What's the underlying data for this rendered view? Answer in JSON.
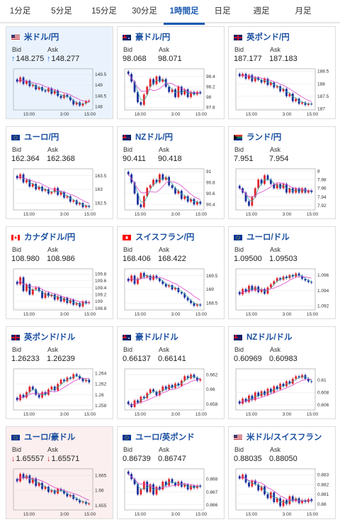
{
  "tabs": [
    {
      "label": "1分足",
      "active": false
    },
    {
      "label": "5分足",
      "active": false
    },
    {
      "label": "15分足",
      "active": false
    },
    {
      "label": "30分足",
      "active": false
    },
    {
      "label": "1時間足",
      "active": true
    },
    {
      "label": "日足",
      "active": false
    },
    {
      "label": "週足",
      "active": false
    },
    {
      "label": "月足",
      "active": false
    }
  ],
  "labels": {
    "bid": "Bid",
    "ask": "Ask"
  },
  "colors": {
    "accent": "#1a5ab0",
    "bull": "#e0242b",
    "bear": "#1a2f9c",
    "ma_pink": "#d946c8",
    "ma_teal": "#3aa8a0",
    "up_arrow": "#1a6fd0",
    "down_arrow": "#d0232a"
  },
  "pairs": [
    {
      "name": "米ドル/円",
      "flag": "flag-us-jp",
      "highlight": "blue",
      "bid": "148.275",
      "ask": "148.277",
      "direction": "up"
    },
    {
      "name": "豪ドル/円",
      "flag": "flag-au-jp",
      "highlight": "",
      "bid": "98.068",
      "ask": "98.071",
      "direction": ""
    },
    {
      "name": "英ポンド/円",
      "flag": "flag-gb-jp",
      "highlight": "",
      "bid": "187.177",
      "ask": "187.183",
      "direction": ""
    },
    {
      "name": "ユーロ/円",
      "flag": "flag-eu-jp",
      "highlight": "",
      "bid": "162.364",
      "ask": "162.368",
      "direction": ""
    },
    {
      "name": "NZドル/円",
      "flag": "flag-nz-jp",
      "highlight": "",
      "bid": "90.411",
      "ask": "90.418",
      "direction": ""
    },
    {
      "name": "ランド/円",
      "flag": "flag-za-jp",
      "highlight": "",
      "bid": "7.951",
      "ask": "7.954",
      "direction": ""
    },
    {
      "name": "カナダドル/円",
      "flag": "flag-ca-jp",
      "highlight": "",
      "bid": "108.980",
      "ask": "108.986",
      "direction": ""
    },
    {
      "name": "スイスフラン/円",
      "flag": "flag-ch-jp",
      "highlight": "",
      "bid": "168.406",
      "ask": "168.422",
      "direction": ""
    },
    {
      "name": "ユーロ/ドル",
      "flag": "flag-eu-us",
      "highlight": "",
      "bid": "1.09500",
      "ask": "1.09503",
      "direction": ""
    },
    {
      "name": "英ポンド/ドル",
      "flag": "flag-gb-us",
      "highlight": "",
      "bid": "1.26233",
      "ask": "1.26239",
      "direction": ""
    },
    {
      "name": "豪ドル/ドル",
      "flag": "flag-au-us",
      "highlight": "",
      "bid": "0.66137",
      "ask": "0.66141",
      "direction": ""
    },
    {
      "name": "NZドル/ドル",
      "flag": "flag-nz-us",
      "highlight": "",
      "bid": "0.60969",
      "ask": "0.60983",
      "direction": ""
    },
    {
      "name": "ユーロ/豪ドル",
      "flag": "flag-eu-au",
      "highlight": "red",
      "bid": "1.65557",
      "ask": "1.65571",
      "direction": "down"
    },
    {
      "name": "ユーロ/英ポンド",
      "flag": "flag-eu-gb",
      "highlight": "",
      "bid": "0.86739",
      "ask": "0.86747",
      "direction": ""
    },
    {
      "name": "米ドル/スイスフラン",
      "flag": "flag-us-ch",
      "highlight": "",
      "bid": "0.88035",
      "ask": "0.88050",
      "direction": ""
    }
  ],
  "chart_data": [
    {
      "type": "candlestick",
      "pair": "米ドル/円",
      "x_ticks": [
        "15:00",
        "3:00",
        "15:00"
      ],
      "y_ticks": [
        "149.5",
        "149",
        "148.5",
        "148"
      ],
      "ylim": [
        147.85,
        149.75
      ],
      "close": [
        149.15,
        149.35,
        149.05,
        149.2,
        148.95,
        149.0,
        148.8,
        148.9,
        148.75,
        148.7,
        148.85,
        148.6,
        148.75,
        148.5,
        148.4,
        148.55,
        148.45,
        148.3,
        148.1,
        148.2,
        148.05,
        148.15,
        148.25,
        148.28
      ]
    },
    {
      "type": "candlestick",
      "pair": "豪ドル/円",
      "x_ticks": [
        "18:00",
        "3:00",
        "15:00"
      ],
      "y_ticks": [
        "98.4",
        "98.2",
        "98",
        "97.8"
      ],
      "ylim": [
        97.75,
        98.55
      ],
      "close": [
        98.45,
        98.3,
        98.1,
        97.9,
        97.85,
        98.05,
        98.2,
        98.35,
        98.25,
        98.4,
        98.3,
        98.35,
        98.2,
        98.1,
        98.15,
        98.0,
        98.2,
        98.05,
        98.15,
        98.0,
        98.1,
        98.05,
        98.1,
        98.07
      ]
    },
    {
      "type": "candlestick",
      "pair": "英ポンド/円",
      "x_ticks": [
        "15:00",
        "3:00",
        "15:00"
      ],
      "y_ticks": [
        "188.5",
        "188",
        "187.5",
        "187"
      ],
      "ylim": [
        186.95,
        188.6
      ],
      "close": [
        188.3,
        188.4,
        188.2,
        188.35,
        188.1,
        188.25,
        188.15,
        188.05,
        188.2,
        187.95,
        188.05,
        187.85,
        187.9,
        187.7,
        187.8,
        187.5,
        187.6,
        187.3,
        187.4,
        187.2,
        187.25,
        187.15,
        187.2,
        187.18
      ]
    },
    {
      "type": "candlestick",
      "pair": "ユーロ/円",
      "x_ticks": [
        "15:00",
        "3:00",
        "15:00"
      ],
      "y_ticks": [
        "163.5",
        "163",
        "162.5"
      ],
      "ylim": [
        162.25,
        163.75
      ],
      "close": [
        163.4,
        163.55,
        163.25,
        163.35,
        163.1,
        163.2,
        163.0,
        163.1,
        162.95,
        163.0,
        162.85,
        162.9,
        163.05,
        162.8,
        162.9,
        162.7,
        162.75,
        162.55,
        162.6,
        162.45,
        162.5,
        162.35,
        162.4,
        162.36
      ]
    },
    {
      "type": "candlestick",
      "pair": "NZドル/円",
      "x_ticks": [
        "15:00",
        "3:00",
        "15:00"
      ],
      "y_ticks": [
        "91",
        "90.8",
        "90.6",
        "90.4"
      ],
      "ylim": [
        90.3,
        91.05
      ],
      "close": [
        90.95,
        90.8,
        90.6,
        90.4,
        90.35,
        90.55,
        90.7,
        90.75,
        90.85,
        90.8,
        90.95,
        90.85,
        90.9,
        90.75,
        90.7,
        90.6,
        90.65,
        90.5,
        90.55,
        90.45,
        90.5,
        90.4,
        90.45,
        90.41
      ]
    },
    {
      "type": "candlestick",
      "pair": "ランド/円",
      "x_ticks": [
        "15:00",
        "3:00",
        "15:00"
      ],
      "y_ticks": [
        "8",
        "7.98",
        "7.96",
        "7.94",
        "7.92"
      ],
      "ylim": [
        7.91,
        8.005
      ],
      "close": [
        7.96,
        7.95,
        7.93,
        7.92,
        7.94,
        7.96,
        7.98,
        7.97,
        7.99,
        7.98,
        7.97,
        7.96,
        7.97,
        7.96,
        7.97,
        7.95,
        7.96,
        7.95,
        7.96,
        7.95,
        7.96,
        7.95,
        7.955,
        7.951
      ]
    },
    {
      "type": "candlestick",
      "pair": "カナダドル/円",
      "x_ticks": [
        "15:00",
        "3:00",
        "15:00"
      ],
      "y_ticks": [
        "109.8",
        "109.6",
        "109.4",
        "109.2",
        "109",
        "108.8"
      ],
      "ylim": [
        108.75,
        109.95
      ],
      "close": [
        109.5,
        109.7,
        109.3,
        109.5,
        109.2,
        109.35,
        109.4,
        109.3,
        109.1,
        109.25,
        109.15,
        109.2,
        109.05,
        109.15,
        109.0,
        109.1,
        108.95,
        109.05,
        108.9,
        108.95,
        108.85,
        109.0,
        108.95,
        108.98
      ]
    },
    {
      "type": "candlestick",
      "pair": "スイスフラン/円",
      "x_ticks": [
        "15:00",
        "3:00",
        "15:00"
      ],
      "y_ticks": [
        "169.5",
        "169",
        "168.5"
      ],
      "ylim": [
        168.25,
        169.75
      ],
      "close": [
        169.3,
        169.5,
        169.2,
        169.4,
        169.6,
        169.45,
        169.5,
        169.35,
        169.5,
        169.4,
        169.3,
        169.2,
        169.1,
        169.15,
        169.0,
        169.05,
        168.9,
        168.85,
        168.7,
        168.6,
        168.5,
        168.4,
        168.45,
        168.41
      ]
    },
    {
      "type": "candlestick",
      "pair": "ユーロ/ドル",
      "x_ticks": [
        "15:00",
        "3:00",
        "15:00"
      ],
      "y_ticks": [
        "1.096",
        "1.094",
        "1.092"
      ],
      "ylim": [
        1.0915,
        1.0968
      ],
      "close": [
        1.0935,
        1.0942,
        1.0938,
        1.0946,
        1.094,
        1.0945,
        1.0938,
        1.0942,
        1.0936,
        1.0944,
        1.0948,
        1.0952,
        1.0956,
        1.0954,
        1.0958,
        1.0956,
        1.096,
        1.0958,
        1.0962,
        1.0959,
        1.0955,
        1.0953,
        1.0951,
        1.095
      ]
    },
    {
      "type": "candlestick",
      "pair": "英ポンド/ドル",
      "x_ticks": [
        "15:00",
        "3:00",
        "15:00"
      ],
      "y_ticks": [
        "1.264",
        "1.262",
        "1.26",
        "1.258"
      ],
      "ylim": [
        1.2572,
        1.2648
      ],
      "close": [
        1.259,
        1.26,
        1.2595,
        1.2605,
        1.2615,
        1.261,
        1.26,
        1.2595,
        1.2605,
        1.26,
        1.261,
        1.2615,
        1.2608,
        1.262,
        1.2628,
        1.2625,
        1.2632,
        1.263,
        1.2638,
        1.2635,
        1.263,
        1.2625,
        1.2628,
        1.2623
      ]
    },
    {
      "type": "candlestick",
      "pair": "豪ドル/ドル",
      "x_ticks": [
        "15:00",
        "3:00",
        "15:00"
      ],
      "y_ticks": [
        "0.662",
        "0.66",
        "0.658"
      ],
      "ylim": [
        0.6572,
        0.6628
      ],
      "close": [
        0.658,
        0.6576,
        0.6585,
        0.6582,
        0.659,
        0.6588,
        0.6595,
        0.66,
        0.6597,
        0.6592,
        0.6598,
        0.6604,
        0.66,
        0.6606,
        0.6602,
        0.6608,
        0.6605,
        0.6612,
        0.6618,
        0.6615,
        0.662,
        0.6616,
        0.6612,
        0.6614
      ]
    },
    {
      "type": "candlestick",
      "pair": "NZドル/ドル",
      "x_ticks": [
        "15:00",
        "3:00",
        "15:00"
      ],
      "y_ticks": [
        "0.61",
        "0.608",
        "0.606"
      ],
      "ylim": [
        0.6052,
        0.6118
      ],
      "close": [
        0.6062,
        0.607,
        0.6065,
        0.6075,
        0.6068,
        0.608,
        0.6074,
        0.6082,
        0.6076,
        0.6086,
        0.608,
        0.609,
        0.6085,
        0.6094,
        0.609,
        0.6098,
        0.6094,
        0.6102,
        0.6106,
        0.6104,
        0.6108,
        0.6102,
        0.6098,
        0.6097
      ]
    },
    {
      "type": "candlestick",
      "pair": "ユーロ/豪ドル",
      "x_ticks": [
        "15:00",
        "3:00",
        "15:00"
      ],
      "y_ticks": [
        "1.665",
        "1.66",
        "1.655"
      ],
      "ylim": [
        1.6535,
        1.6672
      ],
      "close": [
        1.663,
        1.6655,
        1.664,
        1.665,
        1.6625,
        1.664,
        1.6615,
        1.6625,
        1.6605,
        1.6612,
        1.6595,
        1.66,
        1.659,
        1.6605,
        1.66,
        1.659,
        1.658,
        1.6585,
        1.6572,
        1.6568,
        1.656,
        1.6562,
        1.6555,
        1.6556
      ]
    },
    {
      "type": "candlestick",
      "pair": "ユーロ/英ポンド",
      "x_ticks": [
        "15:00",
        "3:00",
        "15:00"
      ],
      "y_ticks": [
        "0.868",
        "0.867",
        "0.866"
      ],
      "ylim": [
        0.8656,
        0.8688
      ],
      "close": [
        0.8684,
        0.868,
        0.8676,
        0.8668,
        0.8672,
        0.8678,
        0.867,
        0.8676,
        0.8668,
        0.8674,
        0.8672,
        0.8678,
        0.8675,
        0.868,
        0.8677,
        0.8675,
        0.8678,
        0.8674,
        0.8676,
        0.8672,
        0.8675,
        0.8673,
        0.8675,
        0.8674
      ]
    },
    {
      "type": "candlestick",
      "pair": "米ドル/スイスフラン",
      "x_ticks": [
        "15:00",
        "3:00",
        "15:00"
      ],
      "y_ticks": [
        "0.883",
        "0.882",
        "0.881",
        "0.88"
      ],
      "ylim": [
        0.8794,
        0.8836
      ],
      "close": [
        0.8826,
        0.883,
        0.8822,
        0.8818,
        0.8824,
        0.882,
        0.8814,
        0.8818,
        0.881,
        0.8806,
        0.8812,
        0.8802,
        0.8806,
        0.8798,
        0.8804,
        0.88,
        0.8808,
        0.8803,
        0.8806,
        0.8801,
        0.8804,
        0.8802,
        0.8805,
        0.8803
      ]
    }
  ]
}
